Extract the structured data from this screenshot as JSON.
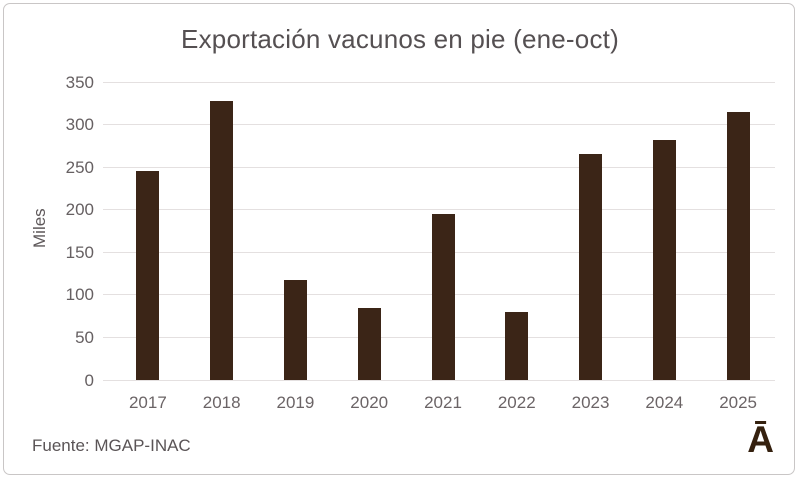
{
  "title": "Exportación vacunos en pie (ene-oct)",
  "footer": {
    "source": "Fuente: MGAP-INAC",
    "logo": "Ā"
  },
  "colors": {
    "bar": "#3b2517",
    "gridline": "#e4e0e0",
    "title_text": "#555052",
    "tick_text": "#6b6466",
    "logo": "#35210f",
    "frame_border": "#c9c6c6"
  },
  "chart_data": {
    "type": "bar",
    "title": "Exportación vacunos en pie (ene-oct)",
    "categories": [
      "2017",
      "2018",
      "2019",
      "2020",
      "2021",
      "2022",
      "2023",
      "2024",
      "2025"
    ],
    "values": [
      246,
      328,
      117,
      85,
      195,
      80,
      265,
      282,
      315
    ],
    "xlabel": "",
    "ylabel": "Miles",
    "ylim": [
      0,
      350
    ],
    "ytick_step": 50,
    "grid": true,
    "legend_position": "none",
    "source_note": "Fuente: MGAP-INAC"
  }
}
